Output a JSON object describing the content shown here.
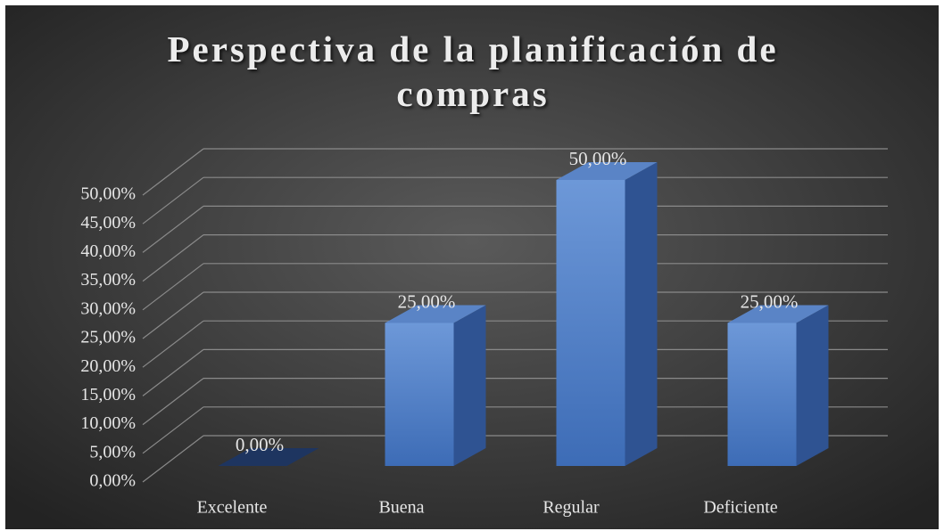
{
  "chart_data": {
    "type": "bar3d",
    "title": "Perspectiva de la planificación de compras",
    "categories": [
      "Excelente",
      "Buena",
      "Regular",
      "Deficiente"
    ],
    "values": [
      0,
      25,
      50,
      25
    ],
    "value_labels": [
      "0,00%",
      "25,00%",
      "50,00%",
      "25,00%"
    ],
    "color": "#4f81c9",
    "ylim": [
      0,
      50
    ],
    "yticks": [
      {
        "value": 0,
        "label": "0,00%"
      },
      {
        "value": 5,
        "label": "5,00%"
      },
      {
        "value": 10,
        "label": "10,00%"
      },
      {
        "value": 15,
        "label": "15,00%"
      },
      {
        "value": 20,
        "label": "20,00%"
      },
      {
        "value": 25,
        "label": "25,00%"
      },
      {
        "value": 30,
        "label": "30,00%"
      },
      {
        "value": 35,
        "label": "35,00%"
      },
      {
        "value": 40,
        "label": "40,00%"
      },
      {
        "value": 45,
        "label": "45,00%"
      },
      {
        "value": 50,
        "label": "50,00%"
      }
    ],
    "grid": true
  }
}
